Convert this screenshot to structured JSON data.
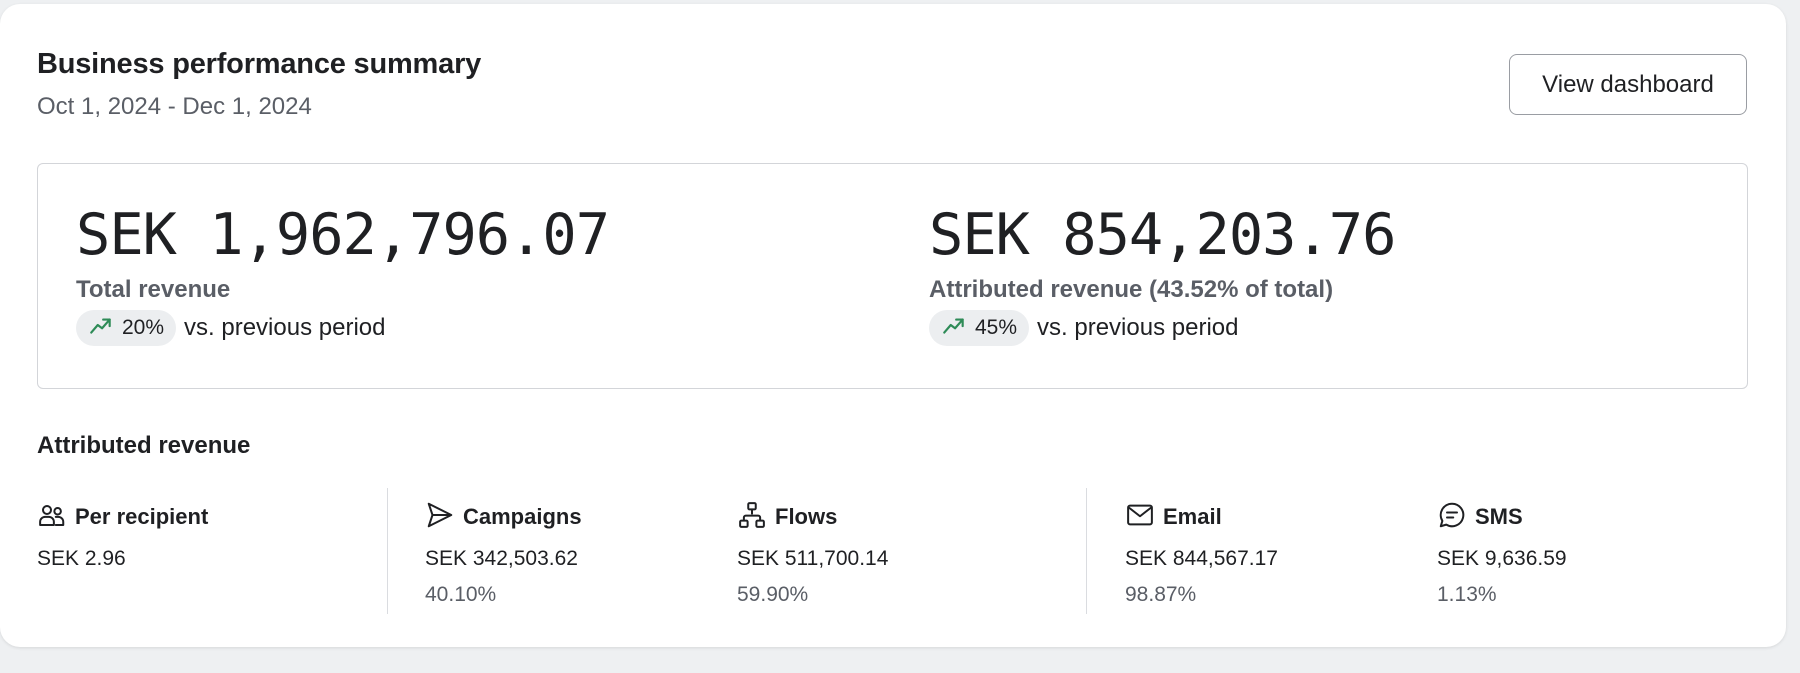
{
  "header": {
    "title": "Business performance summary",
    "date_range": "Oct 1, 2024 - Dec 1, 2024",
    "view_button_label": "View dashboard"
  },
  "metrics": {
    "total": {
      "amount": "SEK 1,962,796.07",
      "label": "Total revenue",
      "change_pct": "20%",
      "change_text": "vs. previous period"
    },
    "attributed": {
      "amount": "SEK 854,203.76",
      "label": "Attributed revenue (43.52% of total)",
      "change_pct": "45%",
      "change_text": "vs. previous period"
    }
  },
  "attributed_section": {
    "title": "Attributed revenue",
    "per_recipient": {
      "label": "Per recipient",
      "value": "SEK 2.96",
      "icon": "people-icon"
    },
    "campaigns": {
      "label": "Campaigns",
      "value": "SEK 342,503.62",
      "pct": "40.10%",
      "icon": "send-icon"
    },
    "flows": {
      "label": "Flows",
      "value": "SEK 511,700.14",
      "pct": "59.90%",
      "icon": "flow-icon"
    },
    "email": {
      "label": "Email",
      "value": "SEK 844,567.17",
      "pct": "98.87%",
      "icon": "mail-icon"
    },
    "sms": {
      "label": "SMS",
      "value": "SEK 9,636.59",
      "pct": "1.13%",
      "icon": "chat-icon"
    }
  },
  "colors": {
    "trend_up": "#2e8b57",
    "pill_bg": "#eceef0",
    "text_primary": "#1f2023",
    "text_secondary": "#5a5e66"
  }
}
